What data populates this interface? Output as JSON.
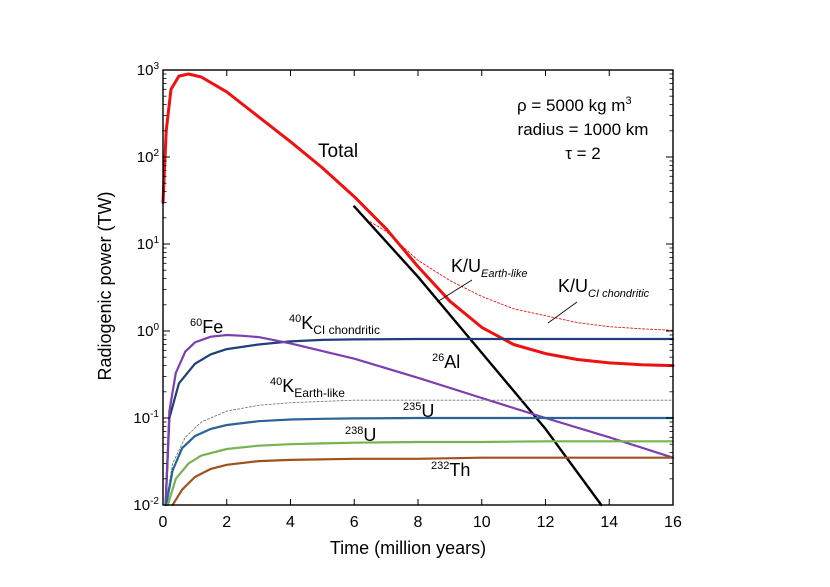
{
  "chart_data": {
    "type": "line",
    "xlabel": "Time (million years)",
    "ylabel": "Radiogenic power (TW)",
    "xlim": [
      0,
      16
    ],
    "ylim": [
      0.01,
      1000
    ],
    "yscale": "log",
    "grid": false,
    "xticks": [
      0,
      2,
      4,
      6,
      8,
      10,
      12,
      14,
      16
    ],
    "yticks": [
      {
        "value": 0.01,
        "base": "10",
        "exp": "-2"
      },
      {
        "value": 0.1,
        "base": "10",
        "exp": "-1"
      },
      {
        "value": 1,
        "base": "10",
        "exp": "0"
      },
      {
        "value": 10,
        "base": "10",
        "exp": "1"
      },
      {
        "value": 100,
        "base": "10",
        "exp": "2"
      },
      {
        "value": 1000,
        "base": "10",
        "exp": "3"
      }
    ],
    "params": {
      "rho": "ρ = 5000 kg m",
      "rho_exp": "3",
      "radius": "radius = 1000 km",
      "tau": "τ = 2"
    },
    "series_labels": {
      "total": "Total",
      "fe60_sup": "60",
      "fe60": "Fe",
      "k40ci_sup": "40",
      "k40ci": "K",
      "k40ci_sub": "CI chondritic",
      "al26_sup": "26",
      "al26": "Al",
      "k40earth_sup": "40",
      "k40earth": "K",
      "k40earth_sub": "Earth-like",
      "u235_sup": "235",
      "u235": "U",
      "u238_sup": "238",
      "u238": "U",
      "th232_sup": "232",
      "th232": "Th",
      "ku_earth": "K/U",
      "ku_earth_sub": "Earth-like",
      "ku_ci": "K/U",
      "ku_ci_sub": "CI chondritic"
    },
    "series": [
      {
        "id": "total",
        "color": "#ee1111",
        "width": 3,
        "dash": "",
        "x": [
          0,
          0.1,
          0.25,
          0.5,
          0.8,
          1.2,
          2,
          3,
          4,
          5,
          6,
          7,
          8,
          9,
          10,
          11,
          12,
          13,
          14,
          15,
          16
        ],
        "y": [
          30,
          200,
          600,
          850,
          900,
          830,
          560,
          290,
          150,
          75,
          35,
          15,
          5.5,
          2.2,
          1.1,
          0.7,
          0.55,
          0.47,
          0.43,
          0.41,
          0.4
        ]
      },
      {
        "id": "ku_earth",
        "color": "#ee1111",
        "width": 0.9,
        "dash": "2,2",
        "x": [
          6.5,
          7,
          8,
          9,
          10,
          11,
          12,
          13,
          14,
          15,
          16
        ],
        "y": [
          18,
          14,
          6.5,
          3.8,
          2.5,
          1.8,
          1.5,
          1.25,
          1.12,
          1.06,
          1.02
        ]
      },
      {
        "id": "al26",
        "color": "#000000",
        "width": 2.4,
        "dash": "",
        "x": [
          6,
          8,
          10,
          12,
          13.75
        ],
        "y": [
          27,
          4.2,
          0.56,
          0.075,
          0.01
        ]
      },
      {
        "id": "k40ci",
        "color": "#1f3f7a",
        "width": 2.2,
        "dash": "",
        "x": [
          0.08,
          0.2,
          0.5,
          1,
          1.5,
          2,
          3,
          4,
          5,
          6,
          8,
          10,
          12,
          14,
          16
        ],
        "y": [
          0.01,
          0.1,
          0.25,
          0.42,
          0.54,
          0.62,
          0.7,
          0.76,
          0.79,
          0.8,
          0.81,
          0.81,
          0.81,
          0.81,
          0.81
        ]
      },
      {
        "id": "fe60",
        "color": "#7b3fb0",
        "width": 2.2,
        "dash": "",
        "x": [
          0.08,
          0.2,
          0.4,
          0.7,
          1,
          1.5,
          2,
          2.5,
          3,
          4,
          6,
          8,
          10,
          12,
          14,
          16
        ],
        "y": [
          0.01,
          0.12,
          0.33,
          0.58,
          0.74,
          0.86,
          0.9,
          0.88,
          0.85,
          0.72,
          0.48,
          0.29,
          0.17,
          0.1,
          0.06,
          0.035
        ]
      },
      {
        "id": "k40earth",
        "color": "#777777",
        "width": 0.9,
        "dash": "2,2",
        "x": [
          0.08,
          0.3,
          0.7,
          1.2,
          2,
          3,
          4,
          5,
          6,
          8,
          10,
          12,
          14,
          16
        ],
        "y": [
          0.01,
          0.03,
          0.06,
          0.09,
          0.12,
          0.14,
          0.15,
          0.155,
          0.16,
          0.16,
          0.16,
          0.16,
          0.16,
          0.16
        ]
      },
      {
        "id": "u235",
        "color": "#2a6496",
        "width": 2.2,
        "dash": "",
        "x": [
          0.1,
          0.3,
          0.6,
          1,
          1.5,
          2,
          3,
          4,
          5,
          6,
          8,
          10,
          12,
          14,
          16
        ],
        "y": [
          0.01,
          0.025,
          0.045,
          0.062,
          0.075,
          0.083,
          0.092,
          0.096,
          0.098,
          0.099,
          0.1,
          0.1,
          0.1,
          0.1,
          0.1
        ]
      },
      {
        "id": "u238",
        "color": "#77b351",
        "width": 2.2,
        "dash": "",
        "x": [
          0.15,
          0.4,
          0.8,
          1.2,
          2,
          3,
          4,
          5,
          6,
          8,
          10,
          12,
          14,
          16
        ],
        "y": [
          0.01,
          0.02,
          0.03,
          0.037,
          0.044,
          0.048,
          0.05,
          0.051,
          0.052,
          0.053,
          0.053,
          0.054,
          0.054,
          0.054
        ]
      },
      {
        "id": "th232",
        "color": "#a0521e",
        "width": 2.2,
        "dash": "",
        "x": [
          0.3,
          0.6,
          1,
          1.5,
          2,
          3,
          4,
          6,
          8,
          10,
          12,
          14,
          16
        ],
        "y": [
          0.01,
          0.015,
          0.021,
          0.026,
          0.029,
          0.032,
          0.033,
          0.034,
          0.034,
          0.035,
          0.035,
          0.035,
          0.035
        ]
      }
    ]
  }
}
